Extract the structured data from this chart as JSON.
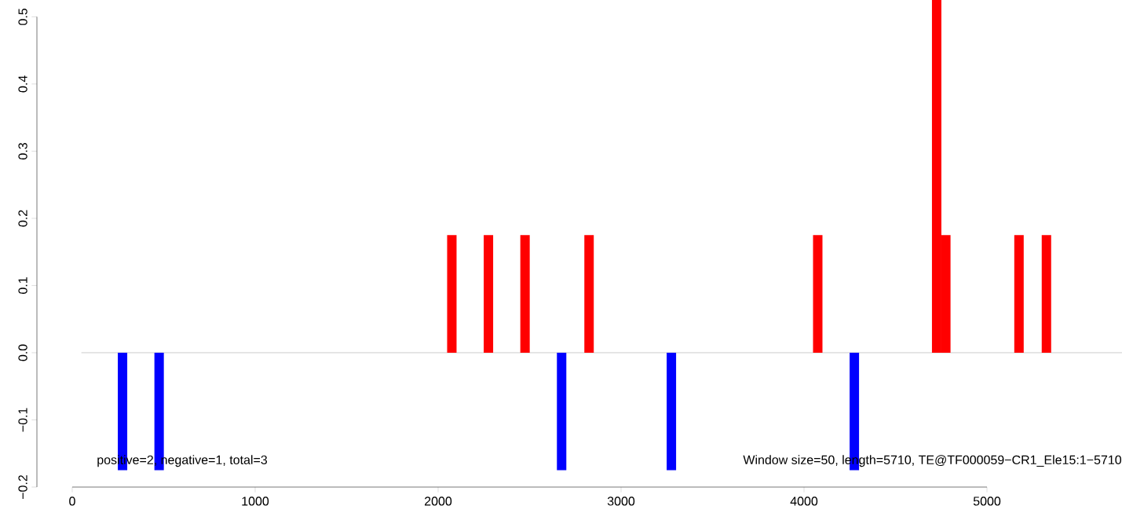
{
  "chart_data": {
    "type": "bar",
    "x": [
      275,
      475,
      2075,
      2275,
      2475,
      2675,
      2825,
      3275,
      4075,
      4275,
      4725,
      4775,
      5175,
      5325
    ],
    "values": [
      -0.175,
      -0.175,
      0.175,
      0.175,
      0.175,
      -0.175,
      0.175,
      -0.175,
      0.175,
      -0.175,
      0.525,
      0.175,
      0.175,
      0.175
    ],
    "colors": [
      "#0000ff",
      "#0000ff",
      "#ff0000",
      "#ff0000",
      "#ff0000",
      "#0000ff",
      "#ff0000",
      "#0000ff",
      "#ff0000",
      "#0000ff",
      "#ff0000",
      "#ff0000",
      "#ff0000",
      "#ff0000"
    ],
    "xlim": [
      -193,
      5738
    ],
    "ylim": [
      -0.2,
      0.525
    ],
    "xticks": [
      0,
      1000,
      2000,
      3000,
      4000,
      5000
    ],
    "yticks": [
      {
        "value": -0.2,
        "label": "−0.2"
      },
      {
        "value": -0.1,
        "label": "−0.1"
      },
      {
        "value": 0,
        "label": "0.0"
      },
      {
        "value": 0.1,
        "label": "0.1"
      },
      {
        "value": 0.2,
        "label": "0.2"
      },
      {
        "value": 0.3,
        "label": "0.3"
      },
      {
        "value": 0.4,
        "label": "0.4"
      },
      {
        "value": 0.5,
        "label": "0.5"
      }
    ],
    "ref_lines": [
      {
        "axis": "y",
        "value": 0,
        "color": "#808080"
      }
    ],
    "annotations": [
      "positive=2, negative=1, total=3",
      "Window size=50, length=5710, TE@TF000059−CR1_Ele15:1−5710"
    ],
    "grid": false
  }
}
